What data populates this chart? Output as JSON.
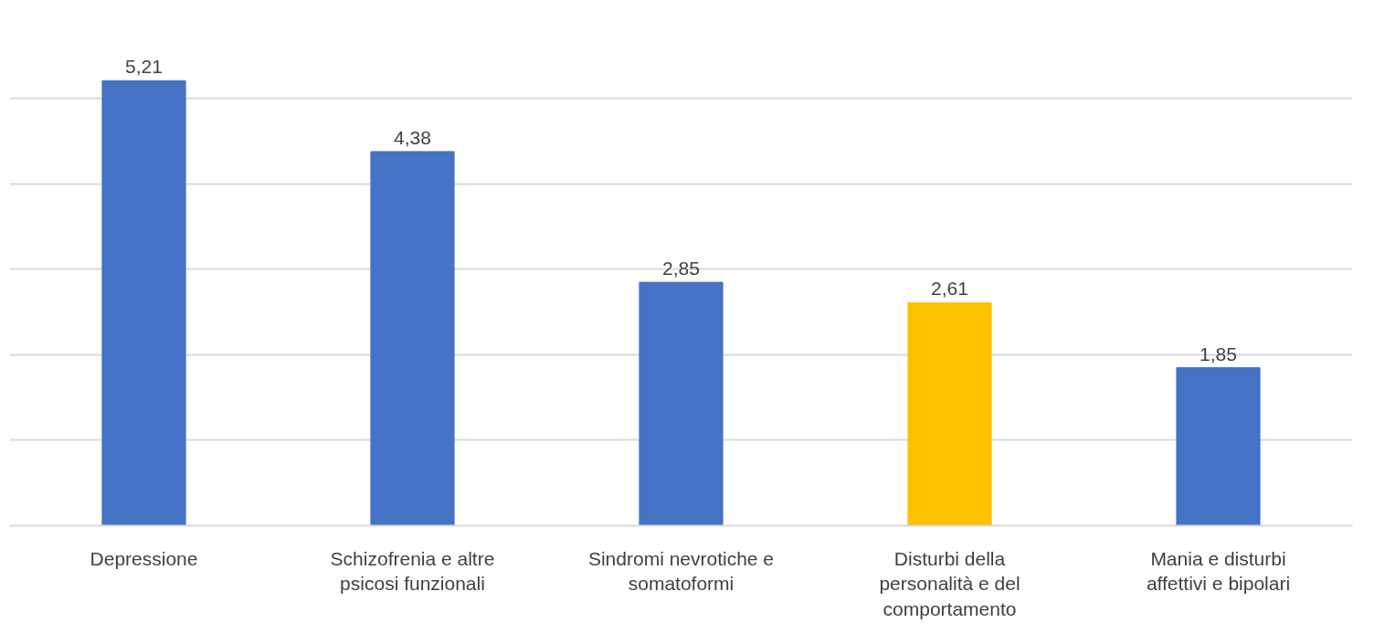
{
  "chart_data": {
    "type": "bar",
    "categories": [
      "Depressione",
      "Schizofrenia e altre psicosi funzionali",
      "Sindromi nevrotiche e somatoformi",
      "Disturbi della personalità e del comportamento",
      "Mania e disturbi affettivi e bipolari"
    ],
    "values": [
      5.21,
      4.38,
      2.85,
      2.61,
      1.85
    ],
    "value_labels": [
      "5,21",
      "4,38",
      "2,85",
      "2,61",
      "1,85"
    ],
    "colors": [
      "#4472c4",
      "#4472c4",
      "#4472c4",
      "#ffc000",
      "#4472c4"
    ],
    "yticks": [
      {
        "value": 0,
        "label": null
      },
      {
        "value": 1,
        "label": null
      },
      {
        "value": 2,
        "label": null
      },
      {
        "value": 3,
        "label": null
      },
      {
        "value": 4,
        "label": null
      },
      {
        "value": 5,
        "label": null
      }
    ],
    "grid": "y",
    "tick_labels": "x"
  }
}
